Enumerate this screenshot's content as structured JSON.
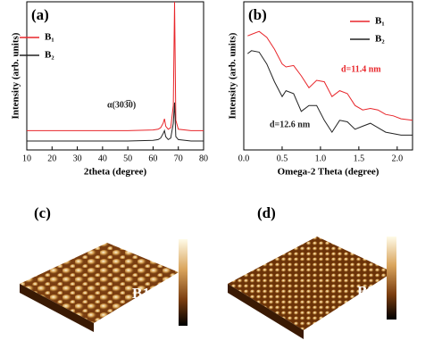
{
  "chart_data": [
    {
      "type": "line",
      "panel": "(a)",
      "xlabel": "2theta (degree)",
      "ylabel": "Intensity (arb. units)",
      "x": [
        10,
        20,
        30,
        40,
        50,
        60,
        62,
        63,
        64,
        64.5,
        65,
        66,
        67,
        68,
        68.5,
        69,
        70,
        75,
        80
      ],
      "series": [
        {
          "name": "B₁",
          "color": "#e8262b",
          "values": [
            13,
            13,
            13,
            13,
            13,
            13.5,
            14,
            15,
            18,
            21,
            16,
            14,
            15,
            30,
            100,
            20,
            14,
            13,
            13
          ]
        },
        {
          "name": "B₂",
          "color": "#222222",
          "values": [
            6,
            6,
            6,
            6,
            6,
            6.5,
            7,
            8,
            11,
            13,
            9,
            7,
            8,
            18,
            32,
            9,
            7,
            6,
            6
          ]
        }
      ],
      "annotations": [
        {
          "text": "α(303̅0)",
          "color": "#222222"
        }
      ],
      "xlim": [
        10,
        80
      ],
      "xticks": [
        10,
        20,
        30,
        40,
        50,
        60,
        70,
        80
      ],
      "ylim": [
        0,
        100
      ]
    },
    {
      "type": "line",
      "panel": "(b)",
      "xlabel": "Omega-2 Theta (degree)",
      "ylabel": "Intensity (arb. units)",
      "x": [
        0.05,
        0.1,
        0.2,
        0.3,
        0.4,
        0.5,
        0.55,
        0.65,
        0.75,
        0.85,
        0.95,
        1.05,
        1.15,
        1.25,
        1.35,
        1.45,
        1.55,
        1.65,
        1.75,
        1.85,
        1.95,
        2.05,
        2.2
      ],
      "series": [
        {
          "name": "B₁",
          "color": "#e8262b",
          "values": [
            77,
            78,
            80,
            76,
            68,
            58,
            56,
            57,
            50,
            42,
            47,
            46,
            36,
            40,
            38,
            30,
            27,
            28,
            27,
            24,
            23,
            21,
            20
          ]
        },
        {
          "name": "B₂",
          "color": "#222222",
          "values": [
            65,
            67,
            66,
            58,
            46,
            36,
            40,
            38,
            26,
            30,
            30,
            20,
            12,
            20,
            19,
            14,
            16,
            18,
            15,
            12,
            11,
            10,
            10
          ]
        }
      ],
      "annotations": [
        {
          "text": "d=11.4 nm",
          "color": "#e8262b"
        },
        {
          "text": "d=12.6 nm",
          "color": "#222222"
        }
      ],
      "xlim": [
        0,
        2.2
      ],
      "xticks": [
        {
          "value": 0,
          "label": "0.0"
        },
        0.5,
        {
          "value": 1,
          "label": "1.0"
        },
        1.5,
        {
          "value": 2,
          "label": "2.0"
        }
      ],
      "ylim": [
        0,
        100
      ]
    }
  ],
  "images": [
    {
      "panel": "(c)",
      "label": "B1"
    },
    {
      "panel": "(d)",
      "label": "B2"
    }
  ]
}
